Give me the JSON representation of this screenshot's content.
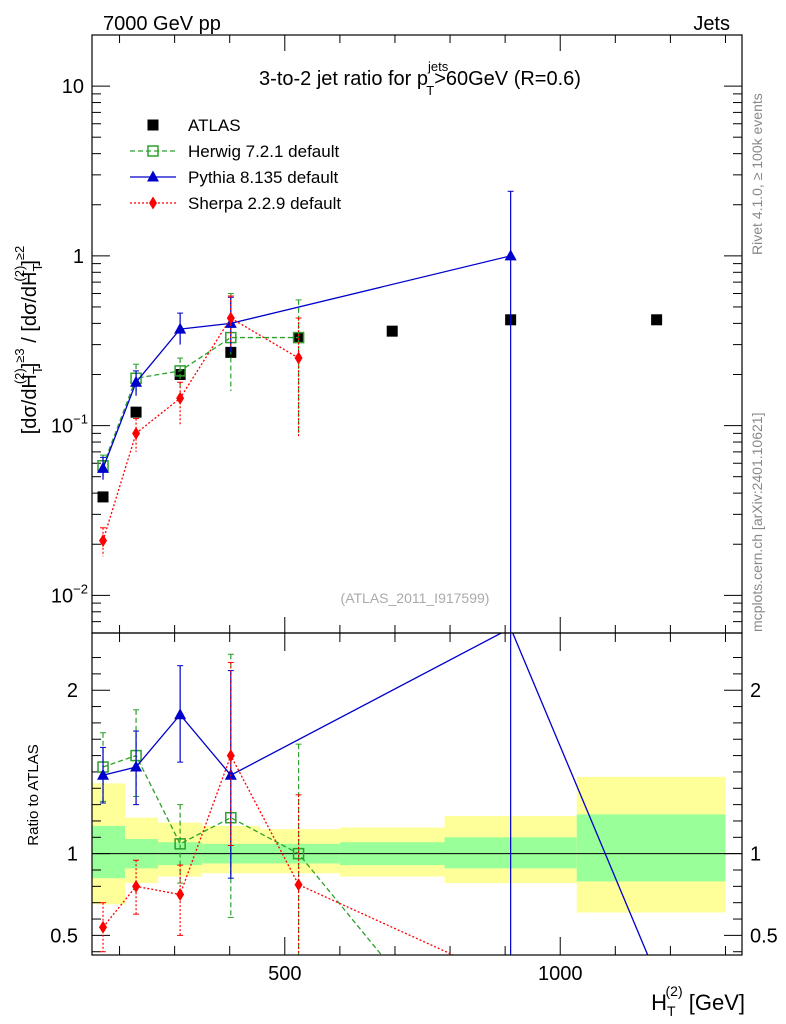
{
  "header": {
    "left": "7000 GeV pp",
    "right": "Jets"
  },
  "side_labels": {
    "rivet": "Rivet 4.1.0, ≥ 100k events",
    "mcplots": "mcplots.cern.ch [arXiv:2401.10621]"
  },
  "colors": {
    "atlas": "#000000",
    "herwig": "#2ca02c",
    "pythia": "#0000cc",
    "sherpa": "#ff0000",
    "band_outer": "#ffff99",
    "band_inner": "#99ff99"
  },
  "chart_data": [
    {
      "type": "scatter",
      "title": "3-to-2 jet ratio for p_T^jets>60GeV (R=0.6)",
      "title_parts": {
        "prefix": "3-to-2 jet ratio for p",
        "sub": "T",
        "sup": "jets",
        "suffix": ">60GeV (R=0.6)"
      },
      "ylabel": "[dσ/dH_T^(2)]^≥3 / [dσ/dH_T^(2)]^≥2",
      "ylabel_parts": {
        "a": "[dσ/dH",
        "a_sub": "T",
        "a_sup": "(2)",
        "b_sup": "≥3",
        "c": " / [dσ/dH",
        "c_sub": "T",
        "c_sup": "(2)",
        "d_sup": "≥2"
      },
      "yscale": "log",
      "ylim": [
        0.006,
        20
      ],
      "xlim": [
        150,
        1330
      ],
      "yticks": [
        {
          "value": 0.01,
          "mant": "10",
          "exp": "−2"
        },
        {
          "value": 0.1,
          "mant": "10",
          "exp": "−1"
        },
        {
          "value": 1,
          "mant": "1",
          "exp": ""
        },
        {
          "value": 10,
          "mant": "10",
          "exp": ""
        }
      ],
      "watermark": "(ATLAS_2011_I917599)",
      "legend_position": "top-left",
      "series": [
        {
          "name": "ATLAS",
          "key": "atlas",
          "marker": "square",
          "connect": false,
          "x": [
            170,
            230,
            310,
            402,
            525,
            695,
            910,
            1175
          ],
          "y": [
            0.038,
            0.12,
            0.2,
            0.27,
            0.33,
            0.36,
            0.42,
            0.42
          ]
        },
        {
          "name": "Herwig 7.2.1 default",
          "key": "herwig",
          "marker": "open-square",
          "connect": true,
          "x": [
            170,
            230,
            310,
            402,
            525
          ],
          "y": [
            0.058,
            0.19,
            0.21,
            0.33,
            0.33
          ],
          "err_up": [
            0.067,
            0.23,
            0.25,
            0.6,
            0.55
          ],
          "err_down": [
            0.05,
            0.16,
            0.17,
            0.16,
            0.09
          ]
        },
        {
          "name": "Pythia 8.135 default",
          "key": "pythia",
          "marker": "triangle",
          "connect": true,
          "x": [
            170,
            230,
            310,
            402,
            910
          ],
          "y": [
            0.056,
            0.18,
            0.37,
            0.4,
            1.0
          ],
          "err_up": [
            0.065,
            0.21,
            0.46,
            0.57,
            2.4
          ],
          "err_down": [
            0.048,
            0.15,
            0.3,
            0.27,
            0.001
          ]
        },
        {
          "name": "Sherpa 2.2.9 default",
          "key": "sherpa",
          "marker": "diamond",
          "connect": true,
          "x": [
            170,
            230,
            310,
            402,
            525
          ],
          "y": [
            0.021,
            0.09,
            0.145,
            0.43,
            0.25
          ],
          "err_up": [
            0.025,
            0.11,
            0.18,
            0.58,
            0.43
          ],
          "err_down": [
            0.017,
            0.07,
            0.1,
            0.29,
            0.085
          ]
        }
      ]
    },
    {
      "type": "line",
      "ylabel": "Ratio to ATLAS",
      "xlabel": "H_T^(2) [GeV]",
      "xlabel_parts": {
        "a": "H",
        "sub": "T",
        "sup": "(2)",
        "b": " [GeV]"
      },
      "ylim": [
        0.38,
        2.35
      ],
      "xlim": [
        150,
        1330
      ],
      "yticks": [
        0.5,
        1,
        2
      ],
      "ytick_labels": [
        "0.5",
        "1",
        "2"
      ],
      "xticks": [
        500,
        1000
      ],
      "xtick_labels": [
        "500",
        "1000"
      ],
      "bands": [
        {
          "x0": 150,
          "x1": 210,
          "outer": [
            0.69,
            1.43
          ],
          "inner": [
            0.85,
            1.17
          ]
        },
        {
          "x0": 210,
          "x1": 270,
          "outer": [
            0.82,
            1.22
          ],
          "inner": [
            0.91,
            1.09
          ]
        },
        {
          "x0": 270,
          "x1": 350,
          "outer": [
            0.86,
            1.19
          ],
          "inner": [
            0.93,
            1.07
          ]
        },
        {
          "x0": 350,
          "x1": 455,
          "outer": [
            0.88,
            1.17
          ],
          "inner": [
            0.94,
            1.06
          ]
        },
        {
          "x0": 455,
          "x1": 600,
          "outer": [
            0.88,
            1.15
          ],
          "inner": [
            0.94,
            1.06
          ]
        },
        {
          "x0": 600,
          "x1": 790,
          "outer": [
            0.86,
            1.16
          ],
          "inner": [
            0.93,
            1.07
          ]
        },
        {
          "x0": 790,
          "x1": 1030,
          "outer": [
            0.82,
            1.23
          ],
          "inner": [
            0.91,
            1.1
          ]
        },
        {
          "x0": 1030,
          "x1": 1300,
          "outer": [
            0.64,
            1.47
          ],
          "inner": [
            0.83,
            1.24
          ]
        }
      ],
      "series": [
        {
          "name": "Herwig 7.2.1 default",
          "key": "herwig",
          "marker": "open-square",
          "x": [
            170,
            230,
            310,
            402,
            525,
            695
          ],
          "y": [
            1.53,
            1.6,
            1.06,
            1.22,
            1.0,
            0.3
          ],
          "err_up": [
            1.74,
            1.88,
            1.3,
            2.22,
            1.67,
            null
          ],
          "err_down": [
            1.32,
            1.35,
            0.82,
            0.61,
            0.35,
            null
          ],
          "show": [
            true,
            true,
            true,
            true,
            true,
            false
          ]
        },
        {
          "name": "Pythia 8.135 default",
          "key": "pythia",
          "marker": "triangle",
          "x": [
            170,
            230,
            310,
            402,
            910,
            1175
          ],
          "y": [
            1.48,
            1.53,
            1.85,
            1.48,
            2.38,
            0.25
          ],
          "err_up": [
            1.65,
            1.75,
            2.15,
            2.12,
            5.7,
            null
          ],
          "err_down": [
            1.31,
            1.3,
            1.56,
            0.85,
            0.0,
            null
          ],
          "show": [
            true,
            true,
            true,
            true,
            true,
            false
          ]
        },
        {
          "name": "Sherpa 2.2.9 default",
          "key": "sherpa",
          "marker": "diamond",
          "x": [
            170,
            230,
            310,
            402,
            525,
            910
          ],
          "y": [
            0.55,
            0.8,
            0.75,
            1.6,
            0.81,
            0.22
          ],
          "err_up": [
            0.7,
            0.96,
            0.93,
            2.17,
            1.36,
            null
          ],
          "err_down": [
            0.4,
            0.63,
            0.5,
            1.05,
            0.28,
            null
          ],
          "show": [
            true,
            true,
            true,
            true,
            true,
            false
          ]
        }
      ]
    }
  ]
}
